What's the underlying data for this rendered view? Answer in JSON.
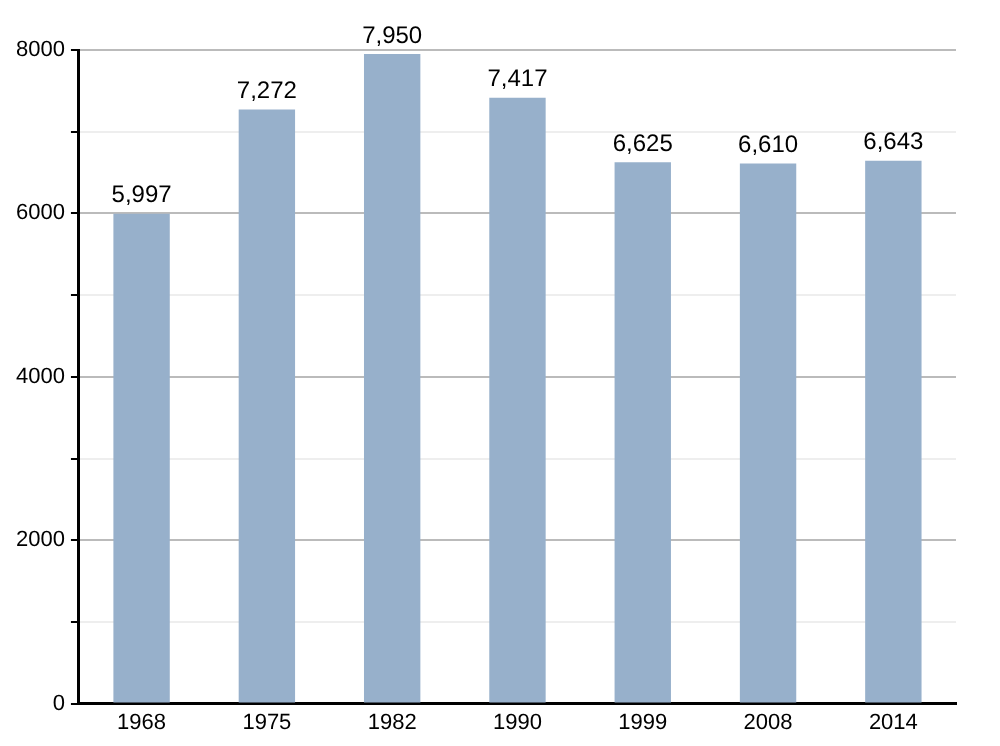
{
  "chart_data": {
    "type": "bar",
    "categories": [
      "1968",
      "1975",
      "1982",
      "1990",
      "1999",
      "2008",
      "2014"
    ],
    "values": [
      5997,
      7272,
      7950,
      7417,
      6625,
      6610,
      6643
    ],
    "value_labels": [
      "5,997",
      "7,272",
      "7,950",
      "7,417",
      "6,625",
      "6,610",
      "6,643"
    ],
    "color": "#97b0cb",
    "ylim": [
      0,
      8000
    ],
    "yticks": [
      0,
      {
        "value": 1000,
        "label": null
      },
      2000,
      {
        "value": 3000,
        "label": null
      },
      4000,
      {
        "value": 5000,
        "label": null
      },
      6000,
      {
        "value": 7000,
        "label": null
      },
      8000
    ],
    "grid": true,
    "legend": false
  }
}
